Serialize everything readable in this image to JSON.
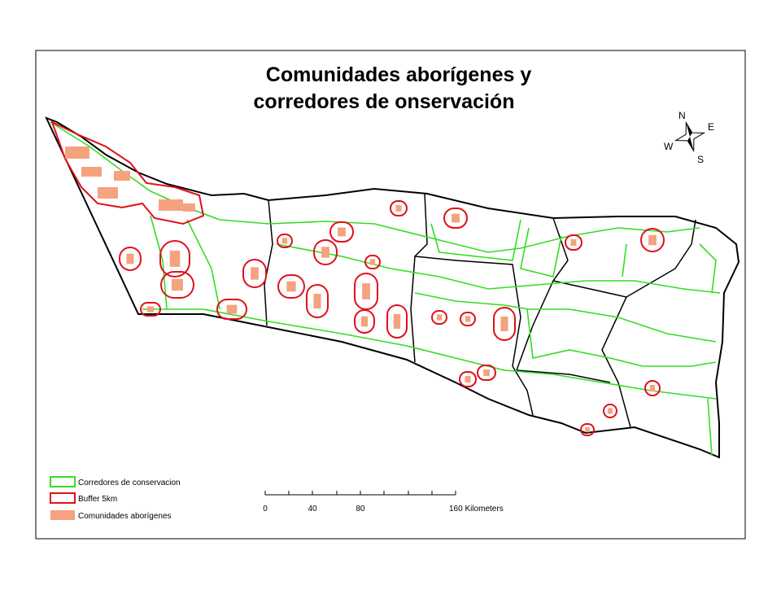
{
  "title": [
    "Comunidades aborígenes y",
    "corredores de onservación"
  ],
  "compass": {
    "north": "N",
    "east": "E",
    "south": "S",
    "west": "W"
  },
  "legend": [
    {
      "label": "Corredores de conservacion",
      "color": "#33dd22"
    },
    {
      "label": "Buffer 5km",
      "color": "#e0101a"
    },
    {
      "label": "Comunidades aborígenes",
      "color": "#f5a27f"
    }
  ],
  "scale_bar": {
    "labels": [
      "0",
      "40",
      "80",
      "160 Kilometers"
    ]
  }
}
